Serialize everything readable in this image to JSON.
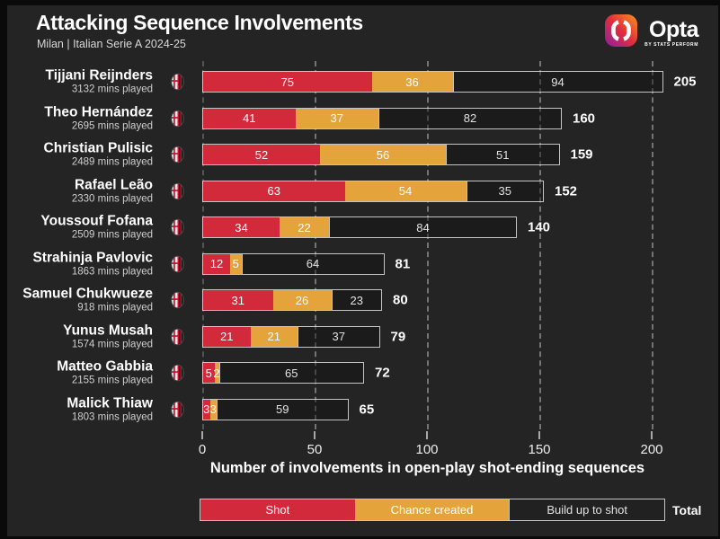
{
  "header": {
    "title": "Attacking Sequence Involvements",
    "subtitle": "Milan | Italian Serie A 2024-25"
  },
  "brand": {
    "name": "Opta",
    "tagline": "BY STATS PERFORM"
  },
  "axis": {
    "label": "Number of involvements in open-play shot-ending sequences"
  },
  "legend": {
    "items": [
      {
        "label": "Shot",
        "color": "#d2293b"
      },
      {
        "label": "Chance created",
        "color": "#e5a33c"
      },
      {
        "label": "Build up to shot",
        "color": "#212121"
      }
    ],
    "total_label": "Total"
  },
  "chart_data": {
    "type": "bar",
    "orientation": "horizontal",
    "stacked": true,
    "title": "Attacking Sequence Involvements",
    "subtitle": "Milan | Italian Serie A 2024-25",
    "xlabel": "Number of involvements in open-play shot-ending sequences",
    "xlim": [
      0,
      200
    ],
    "xticks": [
      0,
      50,
      100,
      150,
      200
    ],
    "grid": "dashed-vertical",
    "legend_position": "bottom",
    "series_colors": {
      "shot": "#d2293b",
      "chance_created": "#e5a33c",
      "build_up_to_shot": "#212121"
    },
    "series_names": [
      "Shot",
      "Chance created",
      "Build up to shot"
    ],
    "team_crest": "ac-milan",
    "players": [
      {
        "name": "Tijjani Reijnders",
        "mins_played": "3132 mins played",
        "shot": 75,
        "chance_created": 36,
        "build_up": 94,
        "total": 205
      },
      {
        "name": "Theo Hernández",
        "mins_played": "2695 mins played",
        "shot": 41,
        "chance_created": 37,
        "build_up": 82,
        "total": 160
      },
      {
        "name": "Christian Pulisic",
        "mins_played": "2489 mins played",
        "shot": 52,
        "chance_created": 56,
        "build_up": 51,
        "total": 159
      },
      {
        "name": "Rafael Leão",
        "mins_played": "2330 mins played",
        "shot": 63,
        "chance_created": 54,
        "build_up": 35,
        "total": 152
      },
      {
        "name": "Youssouf Fofana",
        "mins_played": "2509 mins played",
        "shot": 34,
        "chance_created": 22,
        "build_up": 84,
        "total": 140
      },
      {
        "name": "Strahinja Pavlovic",
        "mins_played": "1863 mins played",
        "shot": 12,
        "chance_created": 5,
        "build_up": 64,
        "total": 81
      },
      {
        "name": "Samuel Chukwueze",
        "mins_played": "918 mins played",
        "shot": 31,
        "chance_created": 26,
        "build_up": 23,
        "total": 80
      },
      {
        "name": "Yunus Musah",
        "mins_played": "1574 mins played",
        "shot": 21,
        "chance_created": 21,
        "build_up": 37,
        "total": 79
      },
      {
        "name": "Matteo Gabbia",
        "mins_played": "2155 mins played",
        "shot": 5,
        "chance_created": 2,
        "build_up": 65,
        "total": 72
      },
      {
        "name": "Malick Thiaw",
        "mins_played": "1803 mins played",
        "shot": 3,
        "chance_created": 3,
        "build_up": 59,
        "total": 65
      }
    ]
  }
}
